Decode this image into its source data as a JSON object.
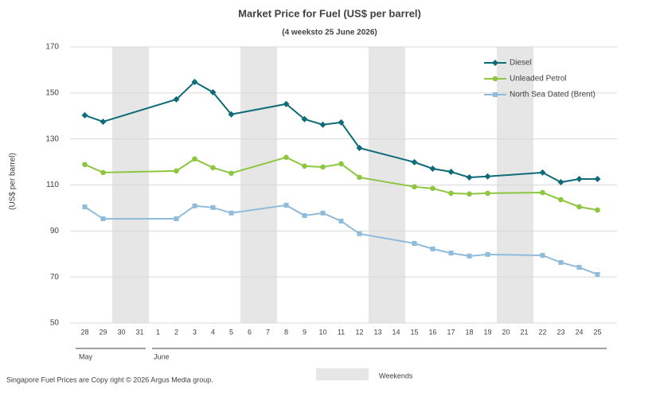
{
  "chart_data": {
    "type": "line",
    "title": "Market Price for Fuel (US$ per barrel)",
    "subtitle": "(4 weeksto 25 June 2026)",
    "y_label": "(US$ per barrel)",
    "categories": [
      "28",
      "29",
      "30",
      "31",
      "1",
      "2",
      "3",
      "4",
      "5",
      "6",
      "7",
      "8",
      "9",
      "10",
      "11",
      "12",
      "13",
      "14",
      "15",
      "16",
      "17",
      "18",
      "19",
      "20",
      "21",
      "22",
      "23",
      "24",
      "25"
    ],
    "months": [
      {
        "label": "May",
        "start": 0
      },
      {
        "label": "June",
        "start": 4
      }
    ],
    "shaded_ranges": [
      [
        2,
        3
      ],
      [
        9,
        10
      ],
      [
        16,
        17
      ],
      [
        23,
        24
      ]
    ],
    "shaded_label": "Weekends",
    "shaded_color": "#e6e6e6",
    "connect_gaps": true,
    "ylim": [
      50,
      170
    ],
    "yticks": [
      50,
      70,
      90,
      110,
      130,
      150,
      170
    ],
    "grid": true,
    "legend": "top-right",
    "series": [
      {
        "name": "Diesel",
        "color": "#0e6b78",
        "marker": "diamond",
        "values": [
          140.3,
          137.5,
          null,
          null,
          null,
          147.2,
          154.8,
          150.3,
          140.7,
          null,
          null,
          145.2,
          138.6,
          136.2,
          137.2,
          126.1,
          null,
          null,
          119.9,
          117.1,
          115.7,
          113.3,
          113.7,
          null,
          null,
          115.4,
          111.2,
          112.6,
          112.6
        ]
      },
      {
        "name": "Unleaded Petrol",
        "color": "#8dc63f",
        "marker": "circle",
        "values": [
          118.9,
          115.4,
          null,
          null,
          null,
          116.1,
          121.3,
          117.5,
          115.1,
          null,
          null,
          122.0,
          118.2,
          117.8,
          119.2,
          113.3,
          null,
          null,
          109.2,
          108.5,
          106.4,
          106.1,
          106.4,
          null,
          null,
          106.7,
          103.6,
          100.5,
          99.1
        ]
      },
      {
        "name": "North Sea Dated (Brent)",
        "color": "#8fbcdb",
        "marker": "square",
        "values": [
          100.5,
          95.3,
          null,
          null,
          null,
          95.3,
          100.9,
          100.2,
          97.8,
          null,
          null,
          101.2,
          96.7,
          97.8,
          94.3,
          88.8,
          null,
          null,
          84.6,
          82.2,
          80.4,
          79.1,
          79.8,
          null,
          null,
          79.4,
          76.3,
          74.2,
          71.1
        ]
      }
    ]
  },
  "footer": "Singapore Fuel Prices are Copy right © 2026 Argus Media group."
}
